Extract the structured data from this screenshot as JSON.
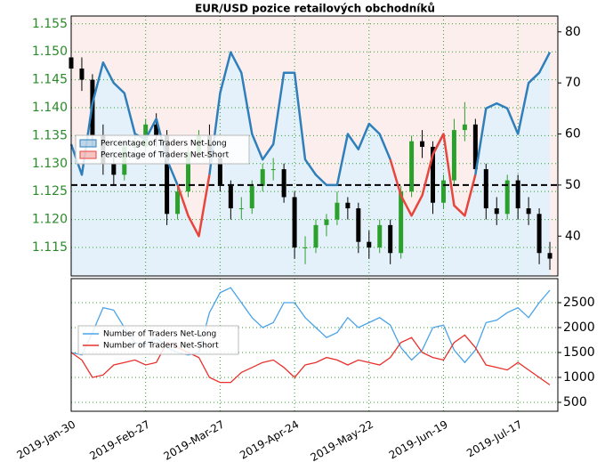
{
  "chart_data": [
    {
      "type": "candlestick",
      "title": "EUR/USD pozice retailových obchodníků",
      "x": [
        "2019-01-30",
        "2019-02-03",
        "2019-02-07",
        "2019-02-11",
        "2019-02-15",
        "2019-02-19",
        "2019-02-23",
        "2019-02-27",
        "2019-03-03",
        "2019-03-07",
        "2019-03-11",
        "2019-03-15",
        "2019-03-19",
        "2019-03-23",
        "2019-03-27",
        "2019-03-31",
        "2019-04-04",
        "2019-04-08",
        "2019-04-12",
        "2019-04-16",
        "2019-04-20",
        "2019-04-24",
        "2019-04-28",
        "2019-05-02",
        "2019-05-06",
        "2019-05-10",
        "2019-05-14",
        "2019-05-18",
        "2019-05-22",
        "2019-05-26",
        "2019-05-30",
        "2019-06-03",
        "2019-06-07",
        "2019-06-11",
        "2019-06-15",
        "2019-06-19",
        "2019-06-23",
        "2019-06-27",
        "2019-07-01",
        "2019-07-05",
        "2019-07-09",
        "2019-07-13",
        "2019-07-17",
        "2019-07-21",
        "2019-07-25",
        "2019-07-29"
      ],
      "open": [
        1.149,
        1.147,
        1.145,
        1.135,
        1.13,
        1.128,
        1.133,
        1.133,
        1.137,
        1.135,
        1.121,
        1.125,
        1.132,
        1.135,
        1.131,
        1.126,
        1.122,
        1.122,
        1.126,
        1.129,
        1.129,
        1.124,
        1.115,
        1.115,
        1.119,
        1.12,
        1.123,
        1.122,
        1.116,
        1.115,
        1.119,
        1.114,
        1.125,
        1.134,
        1.133,
        1.123,
        1.127,
        1.136,
        1.137,
        1.129,
        1.122,
        1.121,
        1.127,
        1.122,
        1.121,
        1.114
      ],
      "high": [
        1.151,
        1.149,
        1.146,
        1.137,
        1.132,
        1.134,
        1.135,
        1.138,
        1.139,
        1.136,
        1.126,
        1.133,
        1.136,
        1.137,
        1.132,
        1.127,
        1.124,
        1.127,
        1.13,
        1.131,
        1.13,
        1.125,
        1.117,
        1.12,
        1.121,
        1.125,
        1.124,
        1.123,
        1.118,
        1.12,
        1.12,
        1.126,
        1.135,
        1.136,
        1.134,
        1.128,
        1.138,
        1.141,
        1.138,
        1.13,
        1.124,
        1.128,
        1.128,
        1.124,
        1.122,
        1.116
      ],
      "low": [
        1.146,
        1.143,
        1.133,
        1.128,
        1.126,
        1.127,
        1.131,
        1.132,
        1.133,
        1.119,
        1.12,
        1.124,
        1.131,
        1.13,
        1.125,
        1.12,
        1.12,
        1.121,
        1.125,
        1.127,
        1.123,
        1.113,
        1.112,
        1.114,
        1.117,
        1.119,
        1.12,
        1.114,
        1.113,
        1.114,
        1.112,
        1.113,
        1.124,
        1.131,
        1.121,
        1.122,
        1.126,
        1.134,
        1.128,
        1.12,
        1.119,
        1.12,
        1.12,
        1.119,
        1.112,
        1.111
      ],
      "close": [
        1.147,
        1.145,
        1.135,
        1.13,
        1.128,
        1.133,
        1.133,
        1.137,
        1.135,
        1.121,
        1.125,
        1.132,
        1.135,
        1.131,
        1.126,
        1.122,
        1.122,
        1.126,
        1.129,
        1.129,
        1.124,
        1.115,
        1.115,
        1.119,
        1.12,
        1.123,
        1.122,
        1.116,
        1.115,
        1.119,
        1.114,
        1.125,
        1.134,
        1.133,
        1.123,
        1.127,
        1.136,
        1.137,
        1.129,
        1.122,
        1.121,
        1.127,
        1.122,
        1.121,
        1.114,
        1.113
      ],
      "up_color": "#2ca02c",
      "down_color": "#000000",
      "xlim": [
        "2019-01-30",
        "2019-08-01"
      ],
      "xticks": [
        {
          "value": "2019-01-30",
          "label": "2019-Jan-30"
        },
        {
          "value": "2019-02-27",
          "label": "2019-Feb-27"
        },
        {
          "value": "2019-03-27",
          "label": "2019-Mar-27"
        },
        {
          "value": "2019-04-24",
          "label": "2019-Apr-24"
        },
        {
          "value": "2019-05-22",
          "label": "2019-May-22"
        },
        {
          "value": "2019-06-19",
          "label": "2019-Jun-19"
        },
        {
          "value": "2019-07-17",
          "label": "2019-Jul-17"
        }
      ],
      "ylim": [
        1.1099,
        1.1564
      ],
      "yticks": [
        1.115,
        {
          "value": 1.12,
          "label": "1.120"
        },
        1.125,
        {
          "value": 1.13,
          "label": "1.130"
        },
        1.135,
        {
          "value": 1.14,
          "label": "1.140"
        },
        1.145,
        {
          "value": 1.15,
          "label": "1.150"
        },
        1.155
      ],
      "y2lim": [
        32.2,
        83.1
      ],
      "y2ticks": [
        40,
        50,
        60,
        70,
        80
      ],
      "reference_line": 50,
      "grid": true,
      "legend": "upper left",
      "series": [
        {
          "name": "Percentage of Traders Net-Long",
          "color": "#2f7fba",
          "axis": "y2",
          "values": [
            58,
            52,
            66,
            74,
            70,
            68,
            60,
            59,
            63,
            55,
            50,
            null,
            null,
            52,
            68,
            76,
            72,
            60,
            55,
            58,
            72,
            72,
            55,
            52,
            50,
            50,
            60,
            57,
            62,
            60,
            55,
            null,
            null,
            null,
            56,
            60,
            null,
            null,
            52,
            65,
            66,
            65,
            60,
            70,
            72,
            76
          ]
        },
        {
          "name": "Percentage of Traders Net-Short",
          "color": "#e8453c",
          "axis": "y2",
          "values": [
            null,
            null,
            null,
            null,
            null,
            null,
            null,
            null,
            null,
            null,
            50,
            44,
            40,
            52,
            null,
            null,
            null,
            null,
            null,
            null,
            null,
            null,
            null,
            null,
            null,
            null,
            null,
            null,
            null,
            null,
            55,
            48,
            44,
            48,
            56,
            60,
            46,
            44,
            52,
            null,
            null,
            null,
            null,
            null,
            null,
            null
          ]
        }
      ]
    },
    {
      "type": "line",
      "x": [
        "2019-01-30",
        "2019-02-03",
        "2019-02-07",
        "2019-02-11",
        "2019-02-15",
        "2019-02-19",
        "2019-02-23",
        "2019-02-27",
        "2019-03-03",
        "2019-03-07",
        "2019-03-11",
        "2019-03-15",
        "2019-03-19",
        "2019-03-23",
        "2019-03-27",
        "2019-03-31",
        "2019-04-04",
        "2019-04-08",
        "2019-04-12",
        "2019-04-16",
        "2019-04-20",
        "2019-04-24",
        "2019-04-28",
        "2019-05-02",
        "2019-05-06",
        "2019-05-10",
        "2019-05-14",
        "2019-05-18",
        "2019-05-22",
        "2019-05-26",
        "2019-05-30",
        "2019-06-03",
        "2019-06-07",
        "2019-06-11",
        "2019-06-15",
        "2019-06-19",
        "2019-06-23",
        "2019-06-27",
        "2019-07-01",
        "2019-07-05",
        "2019-07-09",
        "2019-07-13",
        "2019-07-17",
        "2019-07-21",
        "2019-07-25",
        "2019-07-29"
      ],
      "xlim": [
        "2019-01-30",
        "2019-08-01"
      ],
      "xticks": [
        {
          "value": "2019-01-30",
          "label": "2019-Jan-30"
        },
        {
          "value": "2019-02-27",
          "label": "2019-Feb-27"
        },
        {
          "value": "2019-03-27",
          "label": "2019-Mar-27"
        },
        {
          "value": "2019-04-24",
          "label": "2019-Apr-24"
        },
        {
          "value": "2019-05-22",
          "label": "2019-May-22"
        },
        {
          "value": "2019-06-19",
          "label": "2019-Jun-19"
        },
        {
          "value": "2019-07-17",
          "label": "2019-Jul-17"
        }
      ],
      "ylim": [
        321,
        2982
      ],
      "yticks": [
        500,
        1000,
        1500,
        2000,
        2500
      ],
      "grid": true,
      "legend": "center left",
      "series": [
        {
          "name": "Number of Traders Net-Long",
          "color": "#4aa3e8",
          "values": [
            1500,
            1450,
            1900,
            2400,
            2350,
            2000,
            1700,
            1650,
            1800,
            1600,
            1500,
            1450,
            1500,
            2300,
            2700,
            2800,
            2500,
            2200,
            2000,
            2100,
            2500,
            2500,
            2200,
            2000,
            1800,
            1900,
            2200,
            2000,
            2100,
            2200,
            2050,
            1600,
            1350,
            1550,
            2000,
            2050,
            1550,
            1300,
            1550,
            2100,
            2150,
            2300,
            2400,
            2200,
            2500,
            2750
          ]
        },
        {
          "name": "Number of Traders Net-Short",
          "color": "#e8302a",
          "values": [
            1500,
            1350,
            1000,
            1050,
            1250,
            1300,
            1350,
            1250,
            1300,
            1700,
            1600,
            1500,
            1400,
            1000,
            900,
            900,
            1100,
            1200,
            1300,
            1350,
            1200,
            1000,
            1250,
            1300,
            1400,
            1350,
            1250,
            1350,
            1300,
            1250,
            1400,
            1700,
            1800,
            1500,
            1400,
            1350,
            1700,
            1850,
            1600,
            1250,
            1200,
            1150,
            1300,
            1150,
            1000,
            850
          ]
        }
      ]
    }
  ]
}
